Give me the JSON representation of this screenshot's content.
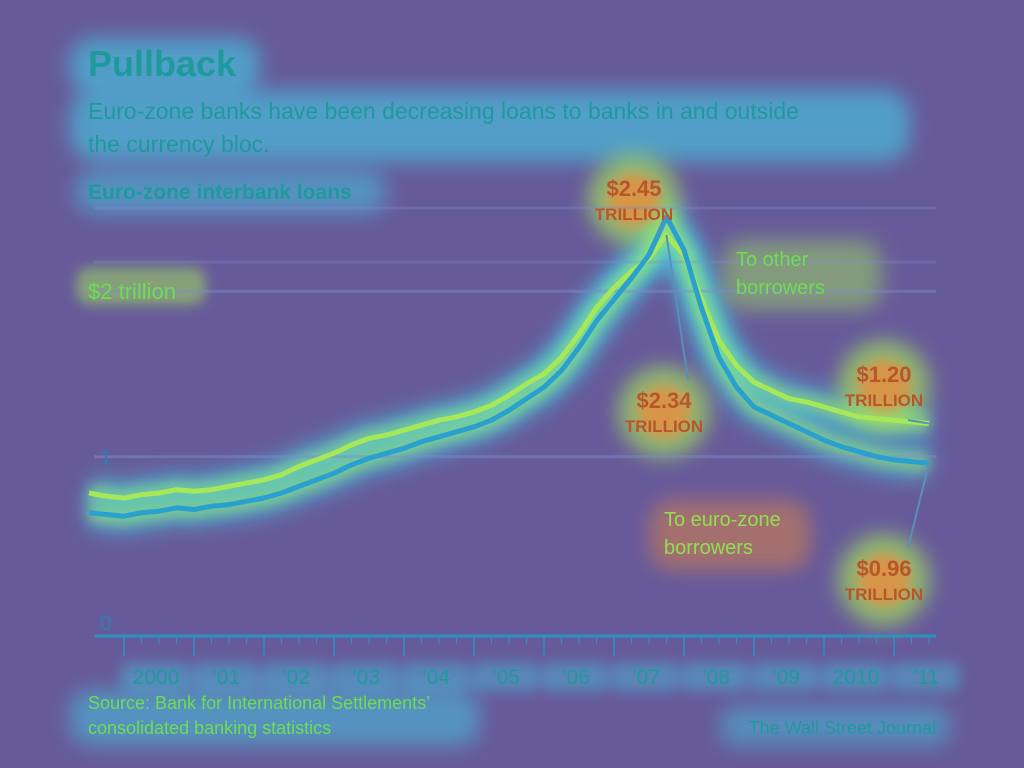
{
  "header": {
    "title": "Pullback",
    "subtitle_line1": "Euro-zone banks have been decreasing loans to banks in and outside",
    "subtitle_line2": "the currency bloc.",
    "chart_label": "Euro-zone interbank loans"
  },
  "footer": {
    "source_line1": "Source: Bank for International Settlements’",
    "source_line2": "consolidated banking statistics",
    "credit": "The Wall Street Journal"
  },
  "colors": {
    "background": "#675a9a",
    "glow_green": "#a6e85a",
    "glow_cyan": "#3fd7ee",
    "glow_orange": "#f08a3a",
    "line": "#2aa0d0",
    "text_primary": "#1f9a9c",
    "text_light": "#6edd52",
    "axis": "#2a93c0"
  },
  "chart_data": {
    "type": "line",
    "title": "Euro-zone interbank loans",
    "xlabel": "",
    "ylabel": "",
    "ylim": [
      0,
      2.6
    ],
    "xlim": [
      1999.5,
      2011.75
    ],
    "grid": true,
    "y_ticks": [
      {
        "value": 0,
        "label": "0"
      },
      {
        "value": 1,
        "label": "1"
      },
      {
        "value": 2,
        "label": "$2 trillion"
      }
    ],
    "x_ticks": [
      {
        "value": 2000,
        "label": "2000"
      },
      {
        "value": 2001,
        "label": "’01"
      },
      {
        "value": 2002,
        "label": "’02"
      },
      {
        "value": 2003,
        "label": "’03"
      },
      {
        "value": 2004,
        "label": "’04"
      },
      {
        "value": 2005,
        "label": "’05"
      },
      {
        "value": 2006,
        "label": "’06"
      },
      {
        "value": 2007,
        "label": "’07"
      },
      {
        "value": 2008,
        "label": "’08"
      },
      {
        "value": 2009,
        "label": "’09"
      },
      {
        "value": 2010,
        "label": "2010"
      },
      {
        "value": 2011,
        "label": "’11"
      }
    ],
    "series": [
      {
        "name": "To other borrowers",
        "x": [
          1999.5,
          1999.75,
          2000,
          2000.25,
          2000.5,
          2000.75,
          2001,
          2001.25,
          2001.5,
          2001.75,
          2002,
          2002.25,
          2002.5,
          2002.75,
          2003,
          2003.25,
          2003.5,
          2003.75,
          2004,
          2004.25,
          2004.5,
          2004.75,
          2005,
          2005.25,
          2005.5,
          2005.75,
          2006,
          2006.25,
          2006.5,
          2006.75,
          2007,
          2007.25,
          2007.5,
          2007.75,
          2008,
          2008.25,
          2008.5,
          2008.75,
          2009,
          2009.25,
          2009.5,
          2009.75,
          2010,
          2010.25,
          2010.5,
          2010.75,
          2011,
          2011.25,
          2011.5
        ],
        "values": [
          0.78,
          0.76,
          0.75,
          0.77,
          0.78,
          0.8,
          0.79,
          0.8,
          0.82,
          0.84,
          0.86,
          0.89,
          0.94,
          0.98,
          1.02,
          1.07,
          1.11,
          1.13,
          1.16,
          1.19,
          1.22,
          1.24,
          1.27,
          1.31,
          1.37,
          1.44,
          1.5,
          1.6,
          1.74,
          1.9,
          2.02,
          2.12,
          2.2,
          2.34,
          2.22,
          1.95,
          1.7,
          1.55,
          1.45,
          1.4,
          1.35,
          1.33,
          1.3,
          1.27,
          1.24,
          1.23,
          1.22,
          1.21,
          1.2
        ]
      },
      {
        "name": "To euro-zone borrowers",
        "x": [
          1999.5,
          1999.75,
          2000,
          2000.25,
          2000.5,
          2000.75,
          2001,
          2001.25,
          2001.5,
          2001.75,
          2002,
          2002.25,
          2002.5,
          2002.75,
          2003,
          2003.25,
          2003.5,
          2003.75,
          2004,
          2004.25,
          2004.5,
          2004.75,
          2005,
          2005.25,
          2005.5,
          2005.75,
          2006,
          2006.25,
          2006.5,
          2006.75,
          2007,
          2007.25,
          2007.5,
          2007.75,
          2008,
          2008.25,
          2008.5,
          2008.75,
          2009,
          2009.25,
          2009.5,
          2009.75,
          2010,
          2010.25,
          2010.5,
          2010.75,
          2011,
          2011.25,
          2011.5
        ],
        "values": [
          0.66,
          0.65,
          0.64,
          0.66,
          0.67,
          0.69,
          0.68,
          0.7,
          0.71,
          0.73,
          0.75,
          0.78,
          0.82,
          0.86,
          0.9,
          0.95,
          0.99,
          1.02,
          1.05,
          1.09,
          1.12,
          1.15,
          1.18,
          1.22,
          1.28,
          1.35,
          1.42,
          1.52,
          1.66,
          1.82,
          1.95,
          2.08,
          2.22,
          2.45,
          2.25,
          1.9,
          1.6,
          1.42,
          1.3,
          1.25,
          1.2,
          1.15,
          1.1,
          1.06,
          1.03,
          1.0,
          0.98,
          0.97,
          0.96
        ]
      }
    ],
    "annotations": [
      {
        "value_text": "$2.45",
        "unit_text": "TRILLION",
        "series": "To euro-zone borrowers",
        "x": 2007.75,
        "y": 2.45
      },
      {
        "value_text": "$2.34",
        "unit_text": "TRILLION",
        "series": "To other borrowers",
        "x": 2007.75,
        "y": 2.34
      },
      {
        "value_text": "$1.20",
        "unit_text": "TRILLION",
        "series": "To other borrowers",
        "x": 2011.5,
        "y": 1.2
      },
      {
        "value_text": "$0.96",
        "unit_text": "TRILLION",
        "series": "To euro-zone borrowers",
        "x": 2011.5,
        "y": 0.96
      }
    ],
    "series_labels": [
      {
        "line1": "To other",
        "line2": "borrowers"
      },
      {
        "line1": "To euro-zone",
        "line2": "borrowers"
      }
    ]
  }
}
